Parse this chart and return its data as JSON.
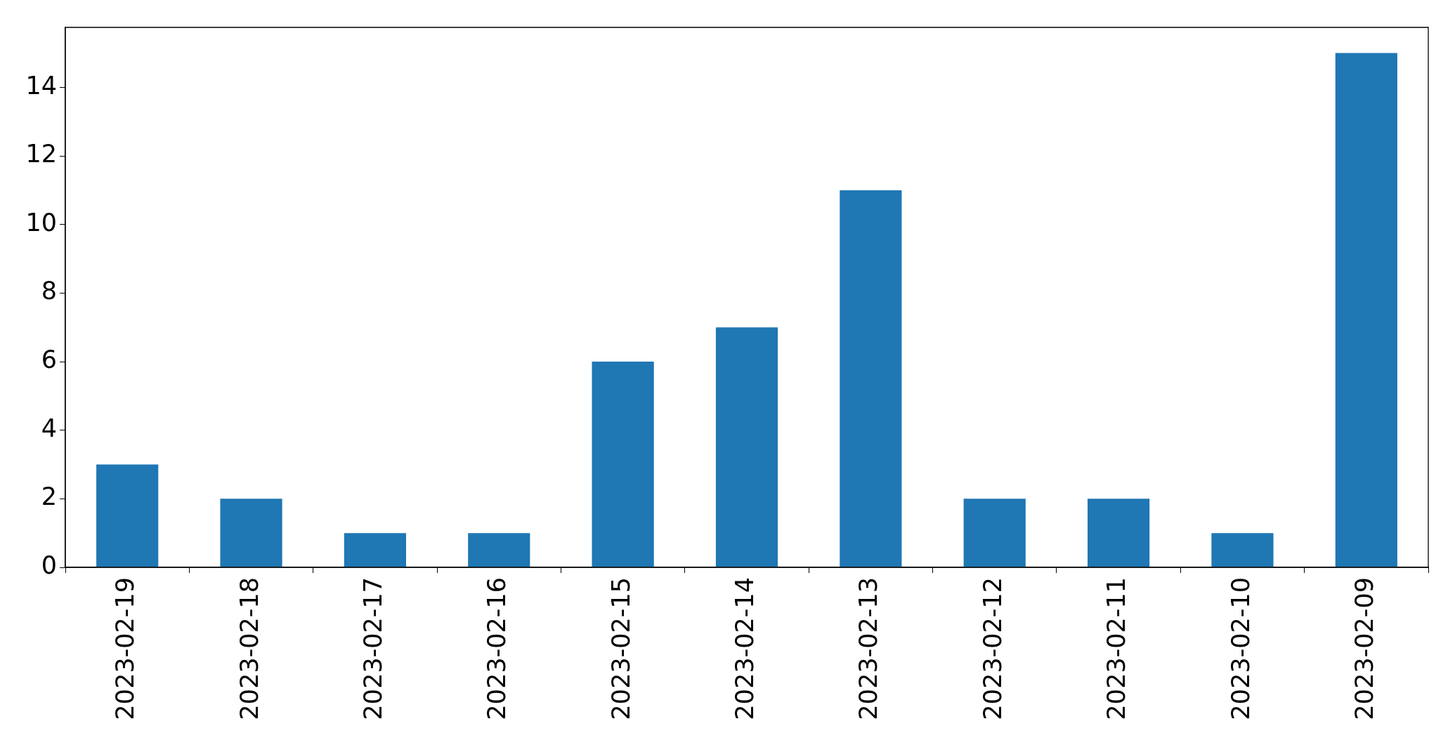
{
  "chart_data": {
    "type": "bar",
    "categories": [
      "2023-02-19",
      "2023-02-18",
      "2023-02-17",
      "2023-02-16",
      "2023-02-15",
      "2023-02-14",
      "2023-02-13",
      "2023-02-12",
      "2023-02-11",
      "2023-02-10",
      "2023-02-09"
    ],
    "values": [
      3,
      2,
      1,
      1,
      6,
      7,
      11,
      2,
      2,
      1,
      15
    ],
    "color": "#1f77b4",
    "ylim": [
      0,
      15.75
    ],
    "yticks": [
      0,
      2,
      4,
      6,
      8,
      10,
      12,
      14
    ],
    "legend": false
  }
}
